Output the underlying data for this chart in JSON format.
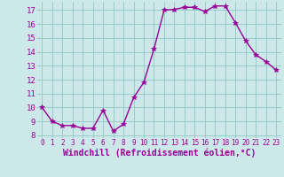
{
  "x": [
    0,
    1,
    2,
    3,
    4,
    5,
    6,
    7,
    8,
    9,
    10,
    11,
    12,
    13,
    14,
    15,
    16,
    17,
    18,
    19,
    20,
    21,
    22,
    23
  ],
  "y": [
    10.0,
    9.0,
    8.7,
    8.7,
    8.5,
    8.5,
    9.8,
    8.3,
    8.8,
    10.7,
    11.8,
    14.2,
    17.0,
    17.05,
    17.2,
    17.2,
    16.9,
    17.3,
    17.3,
    16.1,
    14.8,
    13.8,
    13.3,
    12.7
  ],
  "xlabel": "Windchill (Refroidissement éolien,°C)",
  "ylim": [
    7.8,
    17.6
  ],
  "xlim": [
    -0.5,
    23.5
  ],
  "yticks": [
    8,
    9,
    10,
    11,
    12,
    13,
    14,
    15,
    16,
    17
  ],
  "xticks": [
    0,
    1,
    2,
    3,
    4,
    5,
    6,
    7,
    8,
    9,
    10,
    11,
    12,
    13,
    14,
    15,
    16,
    17,
    18,
    19,
    20,
    21,
    22,
    23
  ],
  "line_color": "#990099",
  "marker": "*",
  "marker_size": 4,
  "bg_color": "#cce8e8",
  "grid_color": "#99cccc",
  "xlabel_fontsize": 7,
  "ytick_fontsize": 6.5,
  "xtick_fontsize": 5.5,
  "linewidth": 1.0
}
